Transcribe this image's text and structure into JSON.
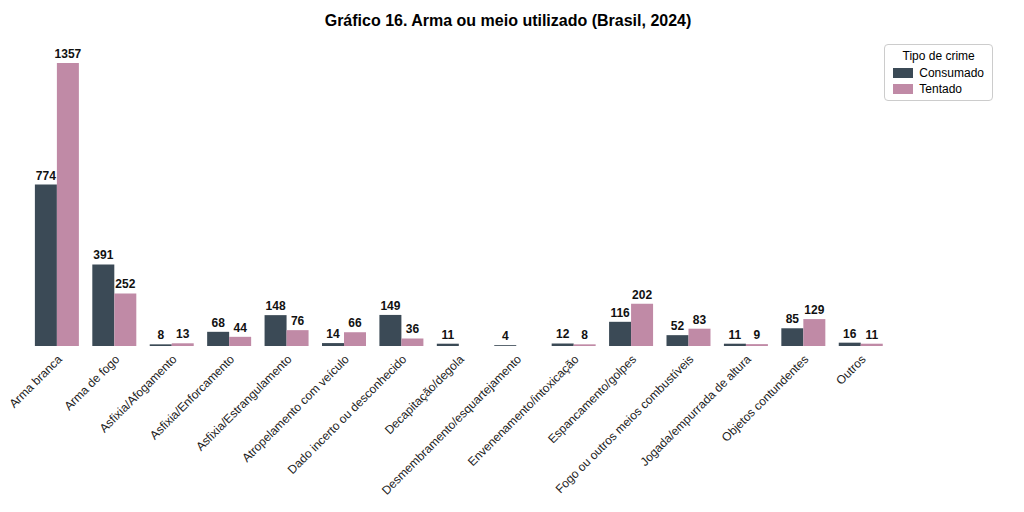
{
  "chart_data": {
    "type": "bar",
    "title": "Gráfico 16. Arma ou meio utilizado (Brasil, 2024)",
    "legend_title": "Tipo de crime",
    "categories": [
      "Arma branca",
      "Arma de fogo",
      "Asfixia/Afogamento",
      "Asfixia/Enforcamento",
      "Asfixia/Estrangulamento",
      "Atropelamento com veículo",
      "Dado incerto ou desconhecido",
      "Decapitação/degola",
      "Desmembramento/esquartejamento",
      "Envenenamento/intoxicação",
      "Espancamento/golpes",
      "Fogo ou outros meios combustíveis",
      "Jogada/empurrada de altura",
      "Objetos contundentes",
      "Outros"
    ],
    "series": [
      {
        "name": "Consumado",
        "color": "#3b4a56",
        "values": [
          774,
          391,
          8,
          68,
          148,
          14,
          149,
          11,
          4,
          12,
          116,
          52,
          11,
          85,
          16
        ]
      },
      {
        "name": "Tentado",
        "color": "#c08aa6",
        "values": [
          1357,
          252,
          13,
          44,
          76,
          66,
          36,
          null,
          null,
          8,
          202,
          83,
          9,
          129,
          11
        ]
      }
    ],
    "ylim": [
      0,
      1400
    ],
    "yticks": [
      0,
      200,
      400,
      600,
      800,
      1000,
      1200,
      1400
    ],
    "grid": false,
    "legend": "upper right",
    "data_labels": true,
    "tick_labels": "x"
  }
}
